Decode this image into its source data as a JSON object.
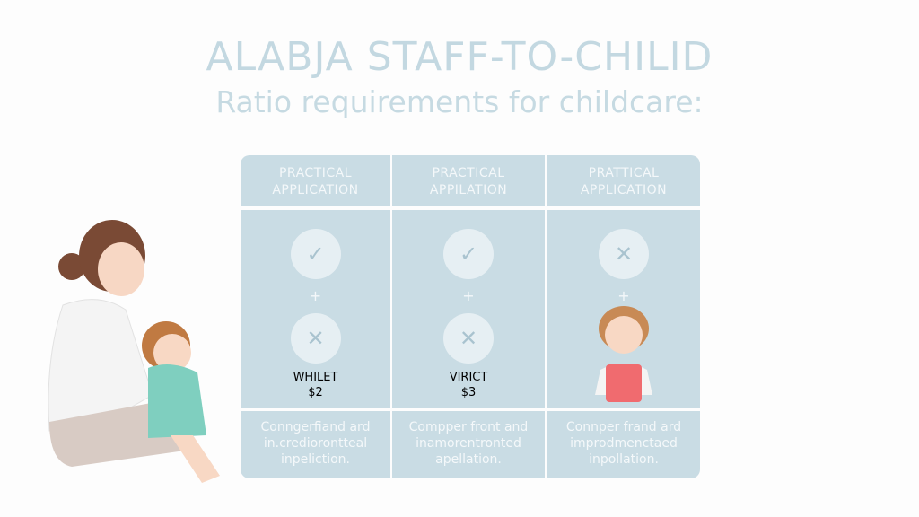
{
  "title": {
    "line1": "ALABJA STAFF-TO-CHILID",
    "line2": "Ratio requirements for childcare:"
  },
  "columns": [
    {
      "header": [
        "PRACTICAL",
        "APPLICATION"
      ],
      "top_icon": "check-icon",
      "bottom_icon": "x-icon",
      "plus": "+",
      "label": [
        "WHILET",
        "$2"
      ],
      "desc": [
        "Conngerfiand ard",
        "in.crediorontteal",
        "inpeliction."
      ]
    },
    {
      "header": [
        "PRACTICAL",
        "APPILATION"
      ],
      "top_icon": "check-icon",
      "bottom_icon": "x-icon",
      "plus": "+",
      "label": [
        "VIRICT",
        "$3"
      ],
      "desc": [
        "Compper front and",
        "inamorentronted",
        "apellation."
      ]
    },
    {
      "header": [
        "PRATTICAL",
        "APPLICATION"
      ],
      "top_icon": "x-icon",
      "bottom_icon": "child-illustration",
      "plus": "+",
      "label": [],
      "desc": [
        "Connper frand ard",
        "improdmenctaed",
        "inpollation."
      ]
    }
  ],
  "colors": {
    "panel": "#c9dce4",
    "title": "#c3d8e1",
    "circle": "#e6eff3",
    "child_shirt": "#f06b6f"
  }
}
